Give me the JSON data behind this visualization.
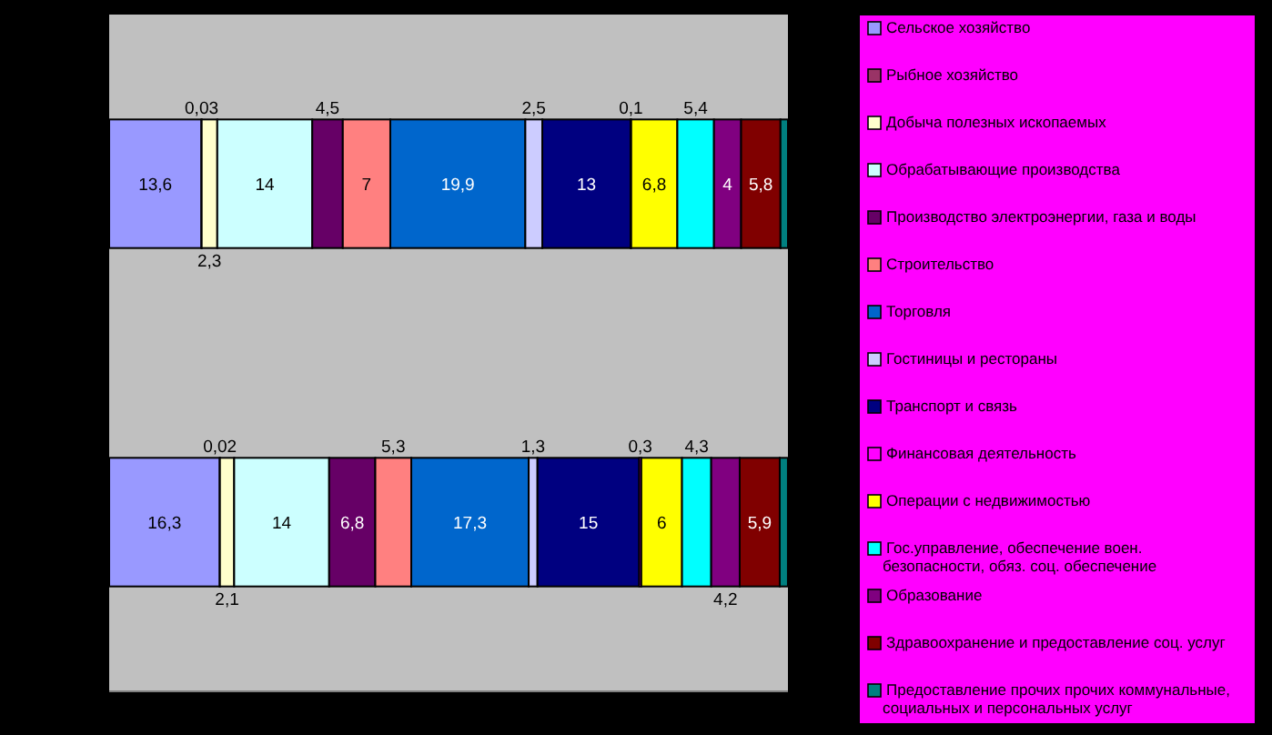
{
  "chart_data": {
    "type": "bar",
    "orientation": "horizontal",
    "stacked": true,
    "categories": [
      null,
      null
    ],
    "legend": "right",
    "series": [
      {
        "name": "Сельское хозяйство",
        "color": "#9999ff",
        "values": [
          13.6,
          16.3
        ],
        "value_labels": [
          "13,6",
          "16,3"
        ]
      },
      {
        "name": "Рыбное хозяйство",
        "color": "#993366",
        "values": [
          0.03,
          0.02
        ],
        "value_labels": [
          "0,03",
          "0,02"
        ]
      },
      {
        "name": "Добыча полезных ископаемых",
        "color": "#ffffcc",
        "values": [
          2.3,
          2.1
        ],
        "value_labels": [
          "2,3",
          "2,1"
        ]
      },
      {
        "name": "Обрабатывающие производства",
        "color": "#ccffff",
        "values": [
          14,
          14
        ],
        "value_labels": [
          "14",
          "14"
        ]
      },
      {
        "name": "Производство электроэнергии, газа и воды",
        "color": "#660066",
        "values": [
          4.5,
          6.8
        ],
        "value_labels": [
          "4,5",
          "6,8"
        ]
      },
      {
        "name": "Строительство",
        "color": "#ff8080",
        "values": [
          7,
          5.3
        ],
        "value_labels": [
          "7",
          "5,3"
        ]
      },
      {
        "name": "Торговля",
        "color": "#0066cc",
        "values": [
          19.9,
          17.3
        ],
        "value_labels": [
          "19,9",
          "17,3"
        ]
      },
      {
        "name": "Гостиницы и рестораны",
        "color": "#ccccff",
        "values": [
          2.5,
          1.3
        ],
        "value_labels": [
          "2,5",
          "1,3"
        ]
      },
      {
        "name": "Транспорт и связь",
        "color": "#000080",
        "values": [
          13,
          15
        ],
        "value_labels": [
          "13",
          "15"
        ]
      },
      {
        "name": "Финансовая деятельность",
        "color": "#ff00ff",
        "values": [
          0.1,
          0.3
        ],
        "value_labels": [
          "0,1",
          "0,3"
        ]
      },
      {
        "name": "Операции с недвижимостью",
        "color": "#ffff00",
        "values": [
          6.8,
          6
        ],
        "value_labels": [
          "6,8",
          "6"
        ]
      },
      {
        "name": "Гос.управление, обеспечение воен. безопасности, обяз. соц. обеспечение",
        "color": "#00ffff",
        "values": [
          5.4,
          4.3
        ],
        "value_labels": [
          "5,4",
          "4,3"
        ]
      },
      {
        "name": "Образование",
        "color": "#800080",
        "values": [
          4,
          4.2
        ],
        "value_labels": [
          "4",
          "4,2"
        ]
      },
      {
        "name": "Здравоохранение и предоставление соц. услуг",
        "color": "#800000",
        "values": [
          5.8,
          5.9
        ],
        "value_labels": [
          "5,8",
          "5,9"
        ]
      },
      {
        "name": "Предоставление прочих прочих коммунальные, социальных и персональных услуг",
        "color": "#008080",
        "values": [
          1.1,
          1.2
        ],
        "value_labels": [
          null,
          null
        ]
      }
    ]
  }
}
